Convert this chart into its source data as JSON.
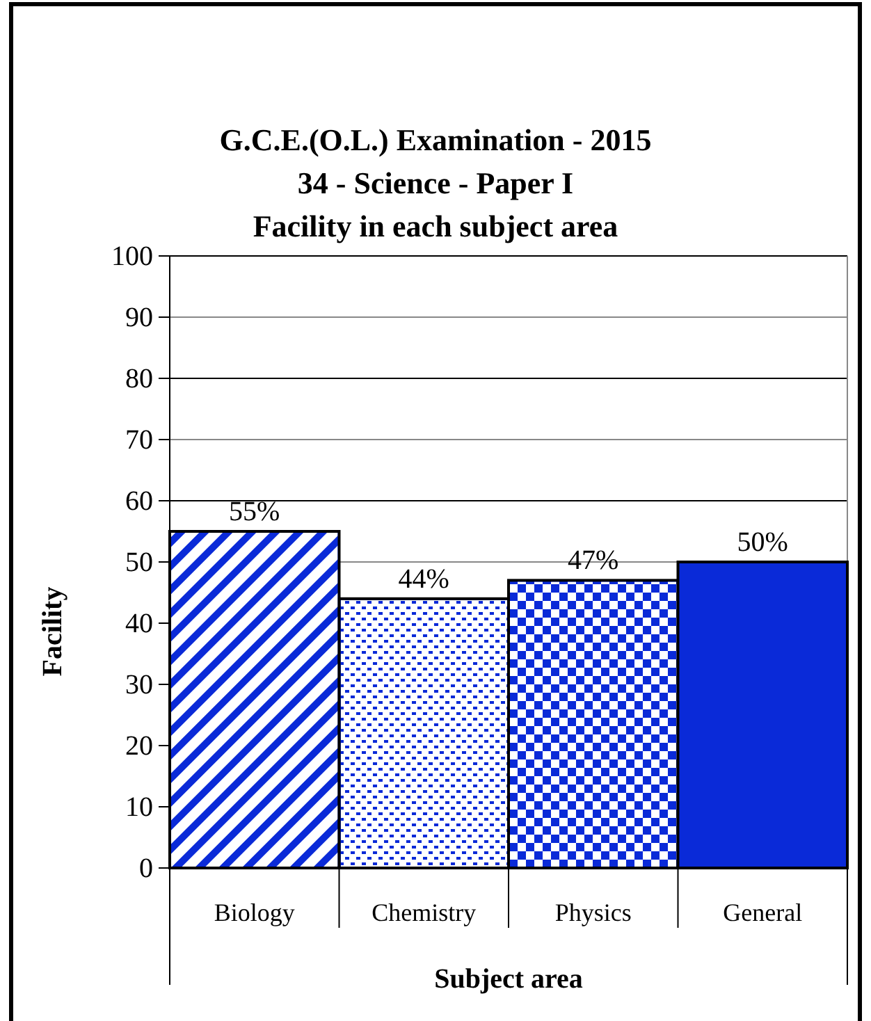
{
  "chart_data": {
    "type": "bar",
    "title": "G.C.E.(O.L.) Examination - 2015\n34  -  Science  -  Paper I\nFacility in each subject area",
    "xlabel": "Subject area",
    "ylabel": "Facility",
    "categories": [
      "Biology",
      "Chemistry",
      "Physics",
      "General"
    ],
    "values": [
      55,
      44,
      47,
      50
    ],
    "value_labels": [
      "55%",
      "44%",
      "47%",
      "50%"
    ],
    "colors": [
      "#0a2ad8",
      "#0a2ad8",
      "#0a2ad8",
      "#0a2ad8"
    ],
    "ylim": [
      0,
      100
    ],
    "yticks": [
      0,
      10,
      20,
      30,
      40,
      50,
      60,
      70,
      80,
      90,
      100
    ],
    "grid": "y"
  }
}
